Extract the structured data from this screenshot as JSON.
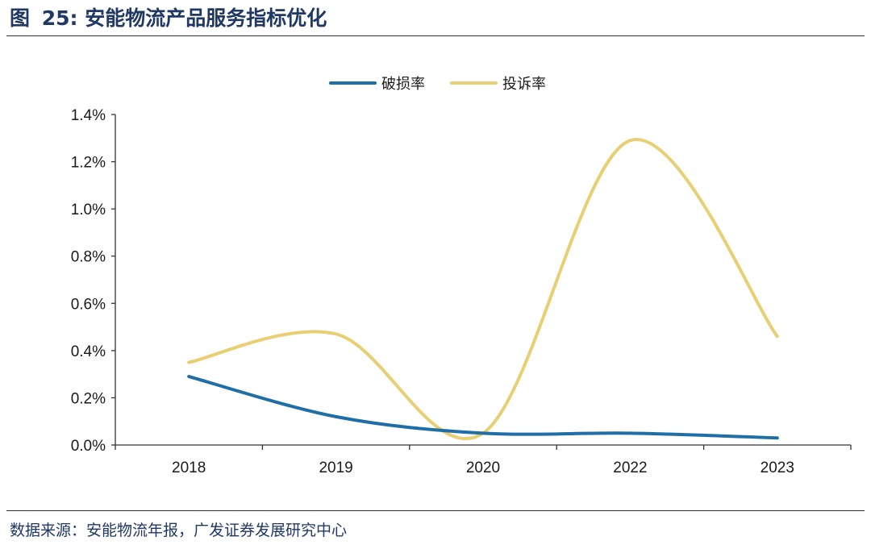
{
  "figure": {
    "label": "图",
    "number": "25:",
    "title": "安能物流产品服务指标优化"
  },
  "source": "数据来源：安能物流年报，广发证券发展研究中心",
  "chart_data": {
    "type": "line",
    "categories": [
      "2018",
      "2019",
      "2020",
      "2022",
      "2023"
    ],
    "series": [
      {
        "name": "破损率",
        "values": [
          0.29,
          0.12,
          0.05,
          0.05,
          0.03
        ],
        "color": "#1f6ea8"
      },
      {
        "name": "投诉率",
        "values": [
          0.35,
          0.47,
          0.05,
          1.29,
          0.46
        ],
        "color": "#e8cf73"
      }
    ],
    "ylim": [
      0,
      1.4
    ],
    "yticks": [
      0,
      0.2,
      0.4,
      0.6,
      0.8,
      1.0,
      1.2,
      1.4
    ],
    "ytick_labels": [
      "0.0%",
      "0.2%",
      "0.4%",
      "0.6%",
      "0.8%",
      "1.0%",
      "1.2%",
      "1.4%"
    ],
    "smooth": true,
    "grid": false,
    "legend_position": "top-center"
  }
}
